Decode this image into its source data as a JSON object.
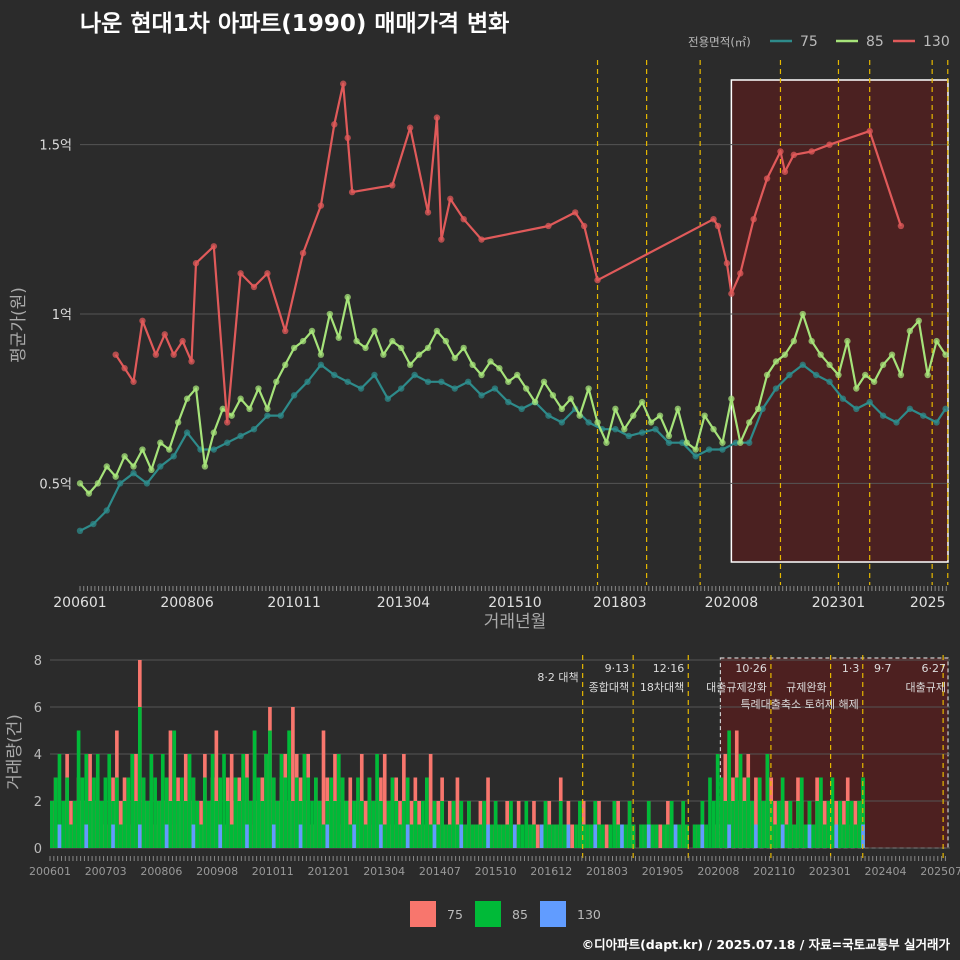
{
  "title": "나운 현대1차 아파트(1990) 매매가격 변화",
  "footer": "©디아파트(dapt.kr) / 2025.07.18 / 자료=국토교통부 실거래가",
  "colors": {
    "s75": "#2e8b8b",
    "s85": "#a6e37a",
    "s130": "#e05a5a",
    "b75": "#f8766d",
    "b85": "#00ba38",
    "b130": "#619cff",
    "highlight": "#5a1e1e",
    "policy": "#e6b800"
  },
  "chart_data": [
    {
      "type": "line",
      "title": "나운 현대1차 아파트(1990) 매매가격 변화",
      "xlabel": "거래년월",
      "ylabel": "평균가(원)",
      "legend_title": "전용면적(㎡)",
      "legend_position": "top-right",
      "grid": true,
      "xlim": [
        2006.0,
        2025.5
      ],
      "ylim": [
        0.2,
        1.75
      ],
      "x_ticks": [
        "200601",
        "200806",
        "201011",
        "201304",
        "201510",
        "201803",
        "202008",
        "202301",
        "2025"
      ],
      "y_ticks": [
        "0.5억",
        "1억",
        "1.5억"
      ],
      "y_tick_values": [
        0.5,
        1.0,
        1.5
      ],
      "highlight_range": [
        2020.6,
        2025.5
      ],
      "policy_lines": [
        2017.6,
        2018.7,
        2019.9,
        2021.7,
        2023.0,
        2023.7,
        2025.1,
        2025.45
      ],
      "series": [
        {
          "name": "75",
          "color": "#2e8b8b",
          "x": [
            2006.0,
            2006.3,
            2006.6,
            2006.9,
            2007.2,
            2007.5,
            2007.8,
            2008.1,
            2008.4,
            2008.7,
            2009.0,
            2009.3,
            2009.6,
            2009.9,
            2010.2,
            2010.5,
            2010.8,
            2011.1,
            2011.4,
            2011.7,
            2012.0,
            2012.3,
            2012.6,
            2012.9,
            2013.2,
            2013.5,
            2013.8,
            2014.1,
            2014.4,
            2014.7,
            2015.0,
            2015.3,
            2015.6,
            2015.9,
            2016.2,
            2016.5,
            2016.8,
            2017.1,
            2017.4,
            2017.7,
            2018.0,
            2018.3,
            2018.6,
            2018.9,
            2019.2,
            2019.5,
            2019.8,
            2020.1,
            2020.4,
            2020.7,
            2021.0,
            2021.3,
            2021.6,
            2021.9,
            2022.2,
            2022.5,
            2022.8,
            2023.1,
            2023.4,
            2023.7,
            2024.0,
            2024.3,
            2024.6,
            2024.9,
            2025.2,
            2025.4
          ],
          "y": [
            0.36,
            0.38,
            0.42,
            0.5,
            0.53,
            0.5,
            0.55,
            0.58,
            0.65,
            0.6,
            0.6,
            0.62,
            0.64,
            0.66,
            0.7,
            0.7,
            0.76,
            0.8,
            0.85,
            0.82,
            0.8,
            0.78,
            0.82,
            0.75,
            0.78,
            0.82,
            0.8,
            0.8,
            0.78,
            0.8,
            0.76,
            0.78,
            0.74,
            0.72,
            0.74,
            0.7,
            0.68,
            0.72,
            0.68,
            0.66,
            0.66,
            0.64,
            0.65,
            0.66,
            0.62,
            0.62,
            0.58,
            0.6,
            0.6,
            0.62,
            0.62,
            0.72,
            0.78,
            0.82,
            0.85,
            0.82,
            0.8,
            0.75,
            0.72,
            0.74,
            0.7,
            0.68,
            0.72,
            0.7,
            0.68,
            0.72
          ]
        },
        {
          "name": "85",
          "color": "#a6e37a",
          "x": [
            2006.0,
            2006.2,
            2006.4,
            2006.6,
            2006.8,
            2007.0,
            2007.2,
            2007.4,
            2007.6,
            2007.8,
            2008.0,
            2008.2,
            2008.4,
            2008.6,
            2008.8,
            2009.0,
            2009.2,
            2009.4,
            2009.6,
            2009.8,
            2010.0,
            2010.2,
            2010.4,
            2010.6,
            2010.8,
            2011.0,
            2011.2,
            2011.4,
            2011.6,
            2011.8,
            2012.0,
            2012.2,
            2012.4,
            2012.6,
            2012.8,
            2013.0,
            2013.2,
            2013.4,
            2013.6,
            2013.8,
            2014.0,
            2014.2,
            2014.4,
            2014.6,
            2014.8,
            2015.0,
            2015.2,
            2015.4,
            2015.6,
            2015.8,
            2016.0,
            2016.2,
            2016.4,
            2016.6,
            2016.8,
            2017.0,
            2017.2,
            2017.4,
            2017.6,
            2017.8,
            2018.0,
            2018.2,
            2018.4,
            2018.6,
            2018.8,
            2019.0,
            2019.2,
            2019.4,
            2019.6,
            2019.8,
            2020.0,
            2020.2,
            2020.4,
            2020.6,
            2020.8,
            2021.0,
            2021.2,
            2021.4,
            2021.6,
            2021.8,
            2022.0,
            2022.2,
            2022.4,
            2022.6,
            2022.8,
            2023.0,
            2023.2,
            2023.4,
            2023.6,
            2023.8,
            2024.0,
            2024.2,
            2024.4,
            2024.6,
            2024.8,
            2025.0,
            2025.2,
            2025.4
          ],
          "y": [
            0.5,
            0.47,
            0.5,
            0.55,
            0.52,
            0.58,
            0.55,
            0.6,
            0.54,
            0.62,
            0.6,
            0.68,
            0.75,
            0.78,
            0.55,
            0.65,
            0.72,
            0.7,
            0.75,
            0.72,
            0.78,
            0.72,
            0.8,
            0.85,
            0.9,
            0.92,
            0.95,
            0.88,
            1.0,
            0.93,
            1.05,
            0.92,
            0.9,
            0.95,
            0.88,
            0.92,
            0.9,
            0.85,
            0.88,
            0.9,
            0.95,
            0.92,
            0.87,
            0.9,
            0.85,
            0.82,
            0.86,
            0.84,
            0.8,
            0.82,
            0.78,
            0.74,
            0.8,
            0.76,
            0.72,
            0.75,
            0.7,
            0.78,
            0.68,
            0.62,
            0.72,
            0.66,
            0.7,
            0.74,
            0.68,
            0.7,
            0.64,
            0.72,
            0.62,
            0.6,
            0.7,
            0.66,
            0.62,
            0.75,
            0.62,
            0.68,
            0.72,
            0.82,
            0.86,
            0.88,
            0.92,
            1.0,
            0.92,
            0.88,
            0.85,
            0.82,
            0.92,
            0.78,
            0.82,
            0.8,
            0.85,
            0.88,
            0.82,
            0.95,
            0.98,
            0.82,
            0.92,
            0.88
          ]
        },
        {
          "name": "130",
          "color": "#e05a5a",
          "x": [
            2006.8,
            2007.0,
            2007.2,
            2007.4,
            2007.7,
            2007.9,
            2008.1,
            2008.3,
            2008.5,
            2008.6,
            2009.0,
            2009.3,
            2009.6,
            2009.9,
            2010.2,
            2010.6,
            2011.0,
            2011.4,
            2011.7,
            2011.9,
            2012.0,
            2012.1,
            2013.0,
            2013.4,
            2013.8,
            2014.0,
            2014.1,
            2014.3,
            2014.6,
            2015.0,
            2016.5,
            2017.1,
            2017.3,
            2017.6,
            2020.2,
            2020.3,
            2020.5,
            2020.6,
            2020.8,
            2021.1,
            2021.4,
            2021.7,
            2021.8,
            2022.0,
            2022.4,
            2022.8,
            2023.7,
            2024.4
          ],
          "y": [
            0.88,
            0.84,
            0.8,
            0.98,
            0.88,
            0.94,
            0.88,
            0.92,
            0.86,
            1.15,
            1.2,
            0.68,
            1.12,
            1.08,
            1.12,
            0.95,
            1.18,
            1.32,
            1.56,
            1.68,
            1.52,
            1.36,
            1.38,
            1.55,
            1.3,
            1.58,
            1.22,
            1.34,
            1.28,
            1.22,
            1.26,
            1.3,
            1.26,
            1.1,
            1.28,
            1.26,
            1.15,
            1.06,
            1.12,
            1.28,
            1.4,
            1.48,
            1.42,
            1.47,
            1.48,
            1.5,
            1.54,
            1.26
          ]
        }
      ]
    },
    {
      "type": "bar",
      "xlabel": "",
      "ylabel": "거래량(건)",
      "legend_position": "bottom",
      "legend": [
        "75",
        "85",
        "130"
      ],
      "ylim": [
        0,
        8
      ],
      "y_ticks": [
        "0",
        "2",
        "4",
        "6",
        "8"
      ],
      "x_ticks": [
        "200601",
        "200703",
        "200806",
        "200908",
        "201011",
        "201201",
        "201304",
        "201407",
        "201510",
        "201612",
        "201803",
        "201905",
        "202008",
        "202110",
        "202301",
        "202404",
        "202507"
      ],
      "policy_annotations": [
        {
          "date": "8·2 대책",
          "label": "",
          "x": 2017.6
        },
        {
          "date": "9·13",
          "label": "종합대책",
          "x": 2018.7
        },
        {
          "date": "12·16",
          "label": "18차대책",
          "x": 2019.9
        },
        {
          "date": "10·26",
          "label": "대출규제강화",
          "x": 2021.7
        },
        {
          "date": "1·3",
          "label": "규제완화",
          "x": 2023.0
        },
        {
          "date": "9·7",
          "label": "특례대출축소 토허제 해제",
          "x": 2023.7
        },
        {
          "date": "6·27",
          "label": "대출규제",
          "x": 2025.45
        }
      ],
      "highlight_range": [
        2020.6,
        2025.5
      ],
      "series": [
        {
          "name": "75",
          "values_sample_note": "",
          "color": "#f8766d"
        },
        {
          "name": "85",
          "color": "#00ba38"
        },
        {
          "name": "130",
          "color": "#619cff"
        }
      ],
      "monthly_counts": {
        "start": 2006.0,
        "s75": [
          2,
          3,
          1,
          2,
          4,
          2,
          1,
          3,
          2,
          1,
          4,
          2,
          3,
          2,
          1,
          2,
          3,
          5,
          2,
          3,
          1,
          2,
          4,
          8,
          3,
          2,
          4,
          1,
          2,
          3,
          2,
          5,
          1,
          3,
          2,
          4,
          2,
          3,
          1,
          2,
          4,
          2,
          3,
          5,
          2,
          1,
          3,
          4,
          2,
          3,
          2,
          4,
          1,
          5,
          2,
          3,
          4,
          6,
          3,
          2,
          3,
          4,
          2,
          6,
          4,
          3,
          2,
          4,
          1,
          3,
          2,
          5,
          3,
          2,
          4,
          1,
          3,
          2,
          3,
          1,
          2,
          4,
          2,
          3,
          1,
          2,
          3,
          4,
          2,
          1,
          3,
          2,
          4,
          1,
          2,
          3,
          2,
          1,
          3,
          4,
          1,
          2,
          3,
          1,
          2,
          1,
          3,
          2,
          1,
          2,
          1,
          1,
          2,
          1,
          3,
          1,
          2,
          1,
          1,
          2,
          1,
          1,
          2,
          0,
          1,
          1,
          2,
          1,
          0,
          1,
          2,
          1,
          1,
          3,
          1,
          2,
          1,
          0,
          1,
          2,
          1,
          1,
          0,
          2,
          1,
          1,
          0,
          1,
          2,
          1,
          1,
          2,
          1,
          0,
          1,
          1,
          2,
          1,
          0,
          1,
          1,
          2,
          0,
          1,
          1,
          2,
          1,
          0,
          1,
          1,
          2,
          1,
          0,
          1,
          1,
          2,
          4,
          2,
          3,
          5,
          2,
          3,
          4,
          2,
          3,
          3,
          2,
          4,
          3,
          2,
          1,
          3,
          2,
          2,
          1,
          3,
          2,
          1,
          2,
          1,
          3,
          2,
          2,
          1,
          1,
          2,
          1,
          2,
          3,
          1,
          2,
          1,
          2,
          1,
          3,
          2,
          1,
          2,
          1
        ],
        "s85": [
          2,
          3,
          4,
          2,
          3,
          1,
          2,
          5,
          3,
          4,
          2,
          3,
          4,
          2,
          3,
          4,
          2,
          3,
          1,
          2,
          3,
          4,
          2,
          6,
          3,
          2,
          4,
          3,
          2,
          4,
          3,
          2,
          5,
          2,
          3,
          2,
          4,
          3,
          2,
          1,
          3,
          2,
          4,
          2,
          3,
          4,
          2,
          1,
          3,
          2,
          4,
          3,
          2,
          5,
          3,
          2,
          4,
          5,
          3,
          2,
          4,
          3,
          5,
          2,
          3,
          2,
          4,
          3,
          2,
          3,
          2,
          1,
          2,
          3,
          2,
          4,
          3,
          2,
          1,
          2,
          3,
          2,
          1,
          3,
          2,
          4,
          2,
          1,
          2,
          3,
          2,
          1,
          2,
          3,
          1,
          2,
          1,
          2,
          3,
          1,
          2,
          1,
          2,
          1,
          1,
          2,
          1,
          2,
          1,
          2,
          1,
          1,
          1,
          2,
          1,
          1,
          2,
          1,
          1,
          1,
          2,
          1,
          1,
          1,
          2,
          1,
          1,
          0,
          1,
          2,
          1,
          1,
          1,
          2,
          1,
          1,
          0,
          1,
          2,
          1,
          1,
          1,
          2,
          1,
          1,
          0,
          1,
          2,
          1,
          1,
          1,
          2,
          1,
          0,
          1,
          1,
          2,
          1,
          1,
          0,
          1,
          1,
          2,
          1,
          1,
          2,
          1,
          0,
          1,
          1,
          2,
          1,
          3,
          2,
          4,
          3,
          2,
          5,
          2,
          3,
          4,
          2,
          3,
          2,
          1,
          3,
          2,
          4,
          2,
          1,
          2,
          3,
          1,
          2,
          1,
          2,
          3,
          1,
          2,
          1,
          2,
          3,
          1,
          2,
          3,
          1,
          2,
          1,
          2,
          2,
          1,
          2,
          3
        ]
      }
    }
  ]
}
